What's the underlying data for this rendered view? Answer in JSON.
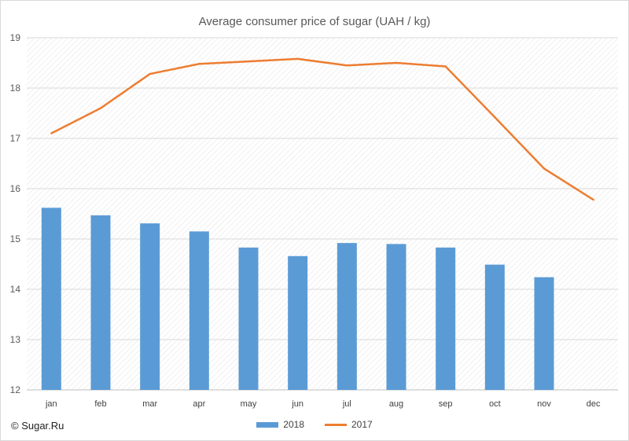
{
  "chart_data": {
    "type": "bar",
    "title": "Average consumer price of sugar (UAH / kg)",
    "categories": [
      "jan",
      "feb",
      "mar",
      "apr",
      "may",
      "jun",
      "jul",
      "aug",
      "sep",
      "oct",
      "nov",
      "dec"
    ],
    "series": [
      {
        "name": "2018",
        "type": "bar",
        "color": "#5b9bd5",
        "values": [
          15.62,
          15.47,
          15.31,
          15.15,
          14.83,
          14.66,
          14.92,
          14.9,
          14.83,
          14.49,
          14.24,
          null
        ]
      },
      {
        "name": "2017",
        "type": "line",
        "color": "#ed7d31",
        "values": [
          17.1,
          17.6,
          18.28,
          18.48,
          18.53,
          18.58,
          18.45,
          18.5,
          18.43,
          17.42,
          16.4,
          15.78
        ]
      }
    ],
    "ylim": [
      12,
      19
    ],
    "yticks": [
      "12",
      "13",
      "14",
      "15",
      "16",
      "17",
      "18",
      "19"
    ],
    "grid": true,
    "legend_position": "bottom"
  },
  "copyright": "© Sugar.Ru"
}
